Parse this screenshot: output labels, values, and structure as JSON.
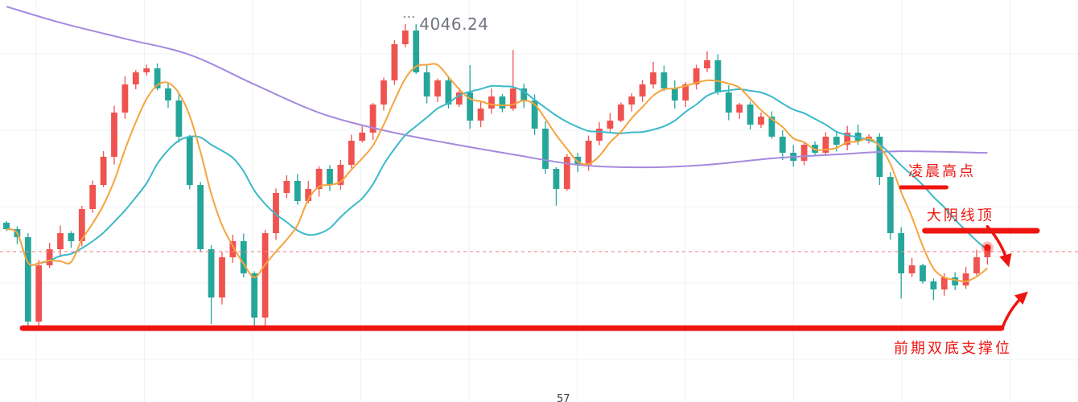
{
  "colors": {
    "up_candle": "#ef5350",
    "down_candle": "#26a69a",
    "ma_fast_orange": "#f5a43d",
    "ma_mid_cyan": "#3cb9c8",
    "ma_slow_purple": "#a58ade",
    "annotation_red": "#ee1510",
    "current_price_pink": "#f2858f",
    "peak_label_gray": "#70747f",
    "grid_gray": "#eff2f6",
    "background": "#ffffff"
  },
  "chart_data": {
    "type": "candlestick",
    "title": "",
    "x_count": 92,
    "ylim": [
      3928.74,
      4053.74
    ],
    "grid": true,
    "legend_position": "none",
    "first_open": 3984.5,
    "closes": [
      3982.49,
      3979.99,
      3953.74,
      3971.24,
      3976.24,
      3981.24,
      3978.74,
      3988.74,
      3996.24,
      4004.99,
      4018.74,
      4027.49,
      4031.24,
      4032.49,
      4026.24,
      4022.49,
      4011.24,
      3996.24,
      3976.24,
      3961.24,
      3973.74,
      3978.74,
      3968.74,
      3954.99,
      3981.24,
      3993.74,
      3997.49,
      3991.24,
      3994.99,
      4001.24,
      3996.24,
      4002.49,
      4009.99,
      4012.49,
      4021.24,
      4028.74,
      4039.99,
      4044.24,
      4031.24,
      4023.74,
      4028.74,
      4021.24,
      4024.99,
      4016.24,
      4019.99,
      4023.74,
      4019.99,
      4026.24,
      4022.49,
      4013.74,
      4001.24,
      3994.99,
      4004.99,
      4002.49,
      4009.99,
      4013.74,
      4016.24,
      4021.24,
      4023.74,
      4027.49,
      4031.24,
      4026.24,
      4022.49,
      4027.49,
      4032.49,
      4034.99,
      4024.99,
      4018.74,
      4021.24,
      4014.99,
      4017.49,
      4011.24,
      4006.24,
      4003.74,
      4008.74,
      4006.24,
      4011.24,
      4008.74,
      4012.49,
      4009.99,
      4011.24,
      3998.74,
      3981.24,
      3968.74,
      3971.24,
      3966.24,
      3963.74,
      3967.49,
      3964.99,
      3968.74,
      3973.74,
      3976.74
    ],
    "wick_overrides": {
      "2": {
        "low": 3950.9
      },
      "19": {
        "low": 3953.0
      },
      "23": {
        "low": 3951.3
      },
      "37": {
        "high": 4046.24
      },
      "43": {
        "high": 4033.5
      },
      "47": {
        "high": 4038.2
      },
      "51": {
        "low": 3989.8
      },
      "60": {
        "high": 4034.5
      },
      "65": {
        "high": 4037.8
      },
      "83": {
        "low": 3960.9
      },
      "86": {
        "low": 3960.4
      }
    },
    "moving_averages": {
      "fast_window": 5,
      "mid_window": 12,
      "slow_points": [
        [
          0,
          4051.7
        ],
        [
          5,
          4046.7
        ],
        [
          11,
          4041.7
        ],
        [
          17,
          4036.7
        ],
        [
          23,
          4027.5
        ],
        [
          29,
          4018.7
        ],
        [
          35,
          4013.2
        ],
        [
          41,
          4009.2
        ],
        [
          47,
          4005.7
        ],
        [
          53,
          4002.5
        ],
        [
          59,
          4001.7
        ],
        [
          65,
          4002.5
        ],
        [
          71,
          4004.5
        ],
        [
          77,
          4005.7
        ],
        [
          83,
          4006.7
        ],
        [
          91,
          4006.2
        ]
      ]
    },
    "current_price_line": {
      "price": 3975.5
    },
    "last_price_marker": {
      "i": 91,
      "price": 3976.74
    },
    "peak_label": {
      "text": "4046.24",
      "i": 38.3,
      "price": 4046.24,
      "leader_i": 36.85
    },
    "annotations": {
      "morning_high": {
        "label": "凌晨高点",
        "line": {
          "price": 3995.5,
          "i_from": 83.0,
          "i_to": 87.2,
          "width": 5
        },
        "label_pos": {
          "i": 86.8,
          "price": 4000.8
        }
      },
      "bearish_top": {
        "label": "大阴线顶",
        "line": {
          "price": 3982.0,
          "i_from": 85.2,
          "i_to": 95.6,
          "width": 7
        },
        "label_pos": {
          "i": 88.5,
          "price": 3986.9
        }
      },
      "support": {
        "label": "前期双底支撑位",
        "line": {
          "price": 3951.7,
          "i_from": 1.5,
          "i_to": 92.3,
          "width": 7
        },
        "label_pos": {
          "i": 87.8,
          "price": 3945.7
        }
      },
      "arrows": [
        {
          "name": "pullback-down-arrow",
          "from_i": 91.0,
          "from_price": 3983.3,
          "to_i": 92.9,
          "to_price": 3971.8
        },
        {
          "name": "bounce-up-arrow",
          "from_i": 92.4,
          "from_price": 3951.9,
          "to_i": 94.5,
          "to_price": 3962.3
        }
      ]
    },
    "bottom_fragment": "57"
  }
}
